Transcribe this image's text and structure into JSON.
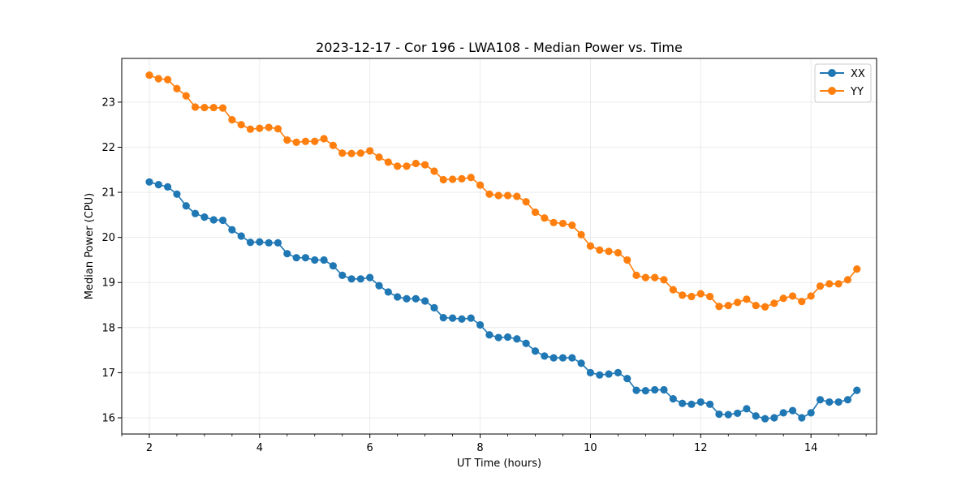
{
  "chart_data": {
    "type": "line",
    "title": "2023-12-17 - Cor 196 - LWA108 - Median Power vs. Time",
    "xlabel": "UT Time (hours)",
    "ylabel": "Median Power (CPU)",
    "xlim": [
      1.5,
      15.19
    ],
    "ylim": [
      15.64,
      23.97
    ],
    "xticks": [
      2,
      4,
      6,
      8,
      10,
      12,
      14
    ],
    "yticks": [
      16,
      17,
      18,
      19,
      20,
      21,
      22,
      23
    ],
    "x_minor_step": 0.5,
    "grid": true,
    "legend_position": "top-right",
    "series": [
      {
        "name": "XX",
        "color": "#1f77b4",
        "x": [
          2.0,
          2.167,
          2.333,
          2.5,
          2.667,
          2.833,
          3.0,
          3.167,
          3.333,
          3.5,
          3.667,
          3.833,
          4.0,
          4.167,
          4.333,
          4.5,
          4.667,
          4.833,
          5.0,
          5.167,
          5.333,
          5.5,
          5.667,
          5.833,
          6.0,
          6.167,
          6.333,
          6.5,
          6.667,
          6.833,
          7.0,
          7.167,
          7.333,
          7.5,
          7.667,
          7.833,
          8.0,
          8.167,
          8.333,
          8.5,
          8.667,
          8.833,
          9.0,
          9.167,
          9.333,
          9.5,
          9.667,
          9.833,
          10.0,
          10.167,
          10.333,
          10.5,
          10.667,
          10.833,
          11.0,
          11.167,
          11.333,
          11.5,
          11.667,
          11.833,
          12.0,
          12.167,
          12.333,
          12.5,
          12.667,
          12.833,
          13.0,
          13.167,
          13.333,
          13.5,
          13.667,
          13.833,
          14.0,
          14.167,
          14.333,
          14.5,
          14.667,
          14.833
        ],
        "values": [
          21.23,
          21.17,
          21.12,
          20.96,
          20.7,
          20.53,
          20.45,
          20.39,
          20.38,
          20.17,
          20.03,
          19.89,
          19.9,
          19.88,
          19.88,
          19.64,
          19.55,
          19.55,
          19.5,
          19.5,
          19.37,
          19.16,
          19.08,
          19.08,
          19.11,
          18.93,
          18.79,
          18.68,
          18.64,
          18.64,
          18.59,
          18.44,
          18.22,
          18.21,
          18.19,
          18.21,
          18.06,
          17.84,
          17.78,
          17.79,
          17.75,
          17.65,
          17.48,
          17.37,
          17.33,
          17.33,
          17.33,
          17.21,
          17.0,
          16.95,
          16.97,
          17.0,
          16.87,
          16.61,
          16.6,
          16.62,
          16.62,
          16.42,
          16.32,
          16.3,
          16.35,
          16.3,
          16.08,
          16.07,
          16.1,
          16.2,
          16.04,
          15.98,
          16.0,
          16.11,
          16.16,
          16.0,
          16.11,
          16.4,
          16.35,
          16.35,
          16.4,
          16.61
        ]
      },
      {
        "name": "YY",
        "color": "#ff7f0e",
        "x": [
          2.0,
          2.167,
          2.333,
          2.5,
          2.667,
          2.833,
          3.0,
          3.167,
          3.333,
          3.5,
          3.667,
          3.833,
          4.0,
          4.167,
          4.333,
          4.5,
          4.667,
          4.833,
          5.0,
          5.167,
          5.333,
          5.5,
          5.667,
          5.833,
          6.0,
          6.167,
          6.333,
          6.5,
          6.667,
          6.833,
          7.0,
          7.167,
          7.333,
          7.5,
          7.667,
          7.833,
          8.0,
          8.167,
          8.333,
          8.5,
          8.667,
          8.833,
          9.0,
          9.167,
          9.333,
          9.5,
          9.667,
          9.833,
          10.0,
          10.167,
          10.333,
          10.5,
          10.667,
          10.833,
          11.0,
          11.167,
          11.333,
          11.5,
          11.667,
          11.833,
          12.0,
          12.167,
          12.333,
          12.5,
          12.667,
          12.833,
          13.0,
          13.167,
          13.333,
          13.5,
          13.667,
          13.833,
          14.0,
          14.167,
          14.333,
          14.5,
          14.667,
          14.833
        ],
        "values": [
          23.6,
          23.52,
          23.5,
          23.3,
          23.14,
          22.89,
          22.88,
          22.88,
          22.87,
          22.61,
          22.5,
          22.4,
          22.42,
          22.44,
          22.41,
          22.16,
          22.11,
          22.13,
          22.13,
          22.19,
          22.04,
          21.87,
          21.86,
          21.87,
          21.92,
          21.78,
          21.67,
          21.58,
          21.58,
          21.64,
          21.61,
          21.47,
          21.28,
          21.29,
          21.3,
          21.33,
          21.16,
          20.96,
          20.93,
          20.93,
          20.91,
          20.79,
          20.56,
          20.43,
          20.33,
          20.31,
          20.27,
          20.06,
          19.81,
          19.72,
          19.69,
          19.66,
          19.5,
          19.16,
          19.11,
          19.11,
          19.06,
          18.84,
          18.72,
          18.69,
          18.75,
          18.69,
          18.47,
          18.49,
          18.56,
          18.63,
          18.49,
          18.46,
          18.54,
          18.65,
          18.7,
          18.58,
          18.7,
          18.92,
          18.97,
          18.97,
          19.06,
          19.3
        ]
      }
    ]
  }
}
